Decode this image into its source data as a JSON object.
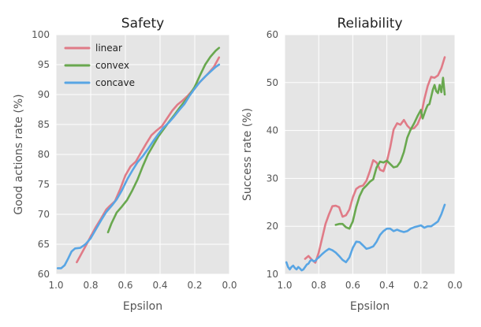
{
  "chart_data": [
    {
      "type": "line",
      "title": "Safety",
      "xlabel": "Epsilon",
      "ylabel": "Good actions rate (%)",
      "xlim": [
        1.0,
        0.0
      ],
      "ylim": [
        60,
        100
      ],
      "xticks": [
        "1.0",
        "0.8",
        "0.6",
        "0.4",
        "0.2",
        "0.0"
      ],
      "yticks": [
        "60",
        "65",
        "70",
        "75",
        "80",
        "85",
        "90",
        "95",
        "100"
      ],
      "grid": true,
      "legend": "top-left",
      "series": [
        {
          "name": "linear",
          "color": "#e07b87",
          "points": [
            [
              0.88,
              62
            ],
            [
              0.85,
              63.6
            ],
            [
              0.82,
              65.2
            ],
            [
              0.8,
              66.3
            ],
            [
              0.77,
              67.9
            ],
            [
              0.74,
              69.3
            ],
            [
              0.71,
              70.8
            ],
            [
              0.69,
              71.4
            ],
            [
              0.66,
              72.2
            ],
            [
              0.63,
              74.2
            ],
            [
              0.6,
              76.5
            ],
            [
              0.57,
              78.0
            ],
            [
              0.54,
              78.8
            ],
            [
              0.51,
              80.3
            ],
            [
              0.48,
              81.8
            ],
            [
              0.45,
              83.2
            ],
            [
              0.42,
              84.0
            ],
            [
              0.39,
              84.7
            ],
            [
              0.36,
              86.0
            ],
            [
              0.33,
              87.3
            ],
            [
              0.3,
              88.3
            ],
            [
              0.27,
              89.0
            ],
            [
              0.24,
              89.8
            ],
            [
              0.21,
              90.8
            ],
            [
              0.18,
              91.8
            ],
            [
              0.15,
              92.7
            ],
            [
              0.12,
              93.6
            ],
            [
              0.09,
              94.6
            ],
            [
              0.06,
              96.2
            ]
          ]
        },
        {
          "name": "convex",
          "color": "#69a84f",
          "points": [
            [
              0.7,
              67
            ],
            [
              0.68,
              68.5
            ],
            [
              0.65,
              70.3
            ],
            [
              0.62,
              71.3
            ],
            [
              0.59,
              72.4
            ],
            [
              0.56,
              74.0
            ],
            [
              0.53,
              75.8
            ],
            [
              0.5,
              78.0
            ],
            [
              0.47,
              80.0
            ],
            [
              0.44,
              81.5
            ],
            [
              0.41,
              83.0
            ],
            [
              0.38,
              84.2
            ],
            [
              0.35,
              85.4
            ],
            [
              0.32,
              86.5
            ],
            [
              0.29,
              87.7
            ],
            [
              0.26,
              88.8
            ],
            [
              0.23,
              89.9
            ],
            [
              0.2,
              91.3
            ],
            [
              0.17,
              93.2
            ],
            [
              0.14,
              95.0
            ],
            [
              0.11,
              96.3
            ],
            [
              0.08,
              97.3
            ],
            [
              0.06,
              97.8
            ]
          ]
        },
        {
          "name": "concave",
          "color": "#58a5e4",
          "points": [
            [
              0.99,
              61
            ],
            [
              0.97,
              61
            ],
            [
              0.95,
              61.5
            ],
            [
              0.93,
              62.6
            ],
            [
              0.91,
              63.8
            ],
            [
              0.89,
              64.3
            ],
            [
              0.86,
              64.4
            ],
            [
              0.83,
              65.0
            ],
            [
              0.8,
              66.0
            ],
            [
              0.77,
              67.5
            ],
            [
              0.74,
              69.0
            ],
            [
              0.71,
              70.4
            ],
            [
              0.68,
              71.4
            ],
            [
              0.65,
              72.5
            ],
            [
              0.62,
              74.0
            ],
            [
              0.59,
              75.8
            ],
            [
              0.56,
              77.3
            ],
            [
              0.53,
              78.7
            ],
            [
              0.5,
              79.7
            ],
            [
              0.47,
              80.9
            ],
            [
              0.44,
              82.2
            ],
            [
              0.41,
              83.4
            ],
            [
              0.38,
              84.5
            ],
            [
              0.35,
              85.3
            ],
            [
              0.32,
              86.3
            ],
            [
              0.29,
              87.4
            ],
            [
              0.26,
              88.4
            ],
            [
              0.23,
              89.8
            ],
            [
              0.2,
              91.0
            ],
            [
              0.17,
              92.1
            ],
            [
              0.14,
              93.0
            ],
            [
              0.11,
              93.8
            ],
            [
              0.08,
              94.6
            ],
            [
              0.06,
              95.0
            ]
          ]
        }
      ]
    },
    {
      "type": "line",
      "title": "Reliability",
      "xlabel": "Epsilon",
      "ylabel": "Success rate (%)",
      "xlim": [
        1.0,
        0.0
      ],
      "ylim": [
        10,
        60
      ],
      "xticks": [
        "1.0",
        "0.8",
        "0.6",
        "0.4",
        "0.2",
        "0.0"
      ],
      "yticks": [
        "10",
        "20",
        "30",
        "40",
        "50",
        "60"
      ],
      "grid": true,
      "series": [
        {
          "name": "linear",
          "color": "#e07b87",
          "points": [
            [
              0.88,
              13.2
            ],
            [
              0.86,
              13.8
            ],
            [
              0.84,
              13.0
            ],
            [
              0.82,
              12.4
            ],
            [
              0.8,
              14.5
            ],
            [
              0.78,
              17.5
            ],
            [
              0.76,
              20.5
            ],
            [
              0.74,
              22.5
            ],
            [
              0.72,
              24.2
            ],
            [
              0.7,
              24.3
            ],
            [
              0.68,
              24.0
            ],
            [
              0.66,
              22.0
            ],
            [
              0.64,
              22.3
            ],
            [
              0.62,
              23.5
            ],
            [
              0.6,
              26.0
            ],
            [
              0.58,
              27.8
            ],
            [
              0.56,
              28.3
            ],
            [
              0.54,
              28.5
            ],
            [
              0.52,
              29.5
            ],
            [
              0.5,
              31.5
            ],
            [
              0.48,
              33.8
            ],
            [
              0.46,
              33.3
            ],
            [
              0.44,
              31.8
            ],
            [
              0.42,
              31.5
            ],
            [
              0.4,
              33.5
            ],
            [
              0.38,
              36.5
            ],
            [
              0.36,
              40.2
            ],
            [
              0.34,
              41.5
            ],
            [
              0.32,
              41.2
            ],
            [
              0.3,
              42.2
            ],
            [
              0.28,
              41.0
            ],
            [
              0.26,
              40.3
            ],
            [
              0.24,
              40.5
            ],
            [
              0.22,
              41.3
            ],
            [
              0.2,
              43.0
            ],
            [
              0.18,
              46.5
            ],
            [
              0.16,
              49.3
            ],
            [
              0.14,
              51.2
            ],
            [
              0.12,
              51.0
            ],
            [
              0.1,
              51.5
            ],
            [
              0.08,
              53.0
            ],
            [
              0.06,
              55.3
            ]
          ]
        },
        {
          "name": "convex",
          "color": "#69a84f",
          "points": [
            [
              0.7,
              20.3
            ],
            [
              0.68,
              20.5
            ],
            [
              0.66,
              20.5
            ],
            [
              0.64,
              19.8
            ],
            [
              0.62,
              19.5
            ],
            [
              0.6,
              21.0
            ],
            [
              0.58,
              24.0
            ],
            [
              0.56,
              26.3
            ],
            [
              0.54,
              27.8
            ],
            [
              0.52,
              28.5
            ],
            [
              0.5,
              29.3
            ],
            [
              0.48,
              29.8
            ],
            [
              0.46,
              32.3
            ],
            [
              0.44,
              33.5
            ],
            [
              0.42,
              33.3
            ],
            [
              0.4,
              33.7
            ],
            [
              0.38,
              33.0
            ],
            [
              0.36,
              32.3
            ],
            [
              0.34,
              32.5
            ],
            [
              0.32,
              33.5
            ],
            [
              0.3,
              35.5
            ],
            [
              0.28,
              38.5
            ],
            [
              0.26,
              40.2
            ],
            [
              0.24,
              41.5
            ],
            [
              0.22,
              43.0
            ],
            [
              0.2,
              44.3
            ],
            [
              0.19,
              42.5
            ],
            [
              0.18,
              43.5
            ],
            [
              0.17,
              44.5
            ],
            [
              0.16,
              45.3
            ],
            [
              0.15,
              45.5
            ],
            [
              0.14,
              47.0
            ],
            [
              0.13,
              48.5
            ],
            [
              0.12,
              49.5
            ],
            [
              0.11,
              48.2
            ],
            [
              0.1,
              47.8
            ],
            [
              0.09,
              49.5
            ],
            [
              0.08,
              48.0
            ],
            [
              0.07,
              51.0
            ],
            [
              0.06,
              47.5
            ]
          ]
        },
        {
          "name": "concave",
          "color": "#58a5e4",
          "points": [
            [
              0.99,
              12.5
            ],
            [
              0.98,
              11.5
            ],
            [
              0.97,
              11.0
            ],
            [
              0.96,
              11.5
            ],
            [
              0.95,
              11.8
            ],
            [
              0.94,
              11.3
            ],
            [
              0.93,
              11.0
            ],
            [
              0.92,
              11.5
            ],
            [
              0.91,
              11.2
            ],
            [
              0.9,
              10.8
            ],
            [
              0.89,
              11.0
            ],
            [
              0.88,
              11.5
            ],
            [
              0.87,
              12.0
            ],
            [
              0.86,
              12.2
            ],
            [
              0.85,
              12.8
            ],
            [
              0.84,
              13.0
            ],
            [
              0.83,
              12.7
            ],
            [
              0.82,
              12.8
            ],
            [
              0.81,
              13.2
            ],
            [
              0.8,
              13.5
            ],
            [
              0.78,
              14.2
            ],
            [
              0.76,
              14.8
            ],
            [
              0.74,
              15.3
            ],
            [
              0.72,
              15.0
            ],
            [
              0.7,
              14.5
            ],
            [
              0.68,
              13.8
            ],
            [
              0.66,
              13.0
            ],
            [
              0.64,
              12.5
            ],
            [
              0.62,
              13.5
            ],
            [
              0.6,
              15.5
            ],
            [
              0.58,
              16.8
            ],
            [
              0.56,
              16.7
            ],
            [
              0.54,
              16.0
            ],
            [
              0.52,
              15.3
            ],
            [
              0.5,
              15.5
            ],
            [
              0.48,
              15.8
            ],
            [
              0.46,
              16.8
            ],
            [
              0.44,
              18.2
            ],
            [
              0.42,
              19.0
            ],
            [
              0.4,
              19.5
            ],
            [
              0.38,
              19.5
            ],
            [
              0.36,
              19.0
            ],
            [
              0.34,
              19.3
            ],
            [
              0.32,
              19.0
            ],
            [
              0.3,
              18.8
            ],
            [
              0.28,
              19.0
            ],
            [
              0.26,
              19.5
            ],
            [
              0.24,
              19.8
            ],
            [
              0.22,
              20.0
            ],
            [
              0.2,
              20.2
            ],
            [
              0.18,
              19.7
            ],
            [
              0.16,
              20.0
            ],
            [
              0.14,
              20.0
            ],
            [
              0.12,
              20.5
            ],
            [
              0.1,
              21.0
            ],
            [
              0.08,
              22.5
            ],
            [
              0.06,
              24.5
            ]
          ]
        }
      ]
    }
  ]
}
